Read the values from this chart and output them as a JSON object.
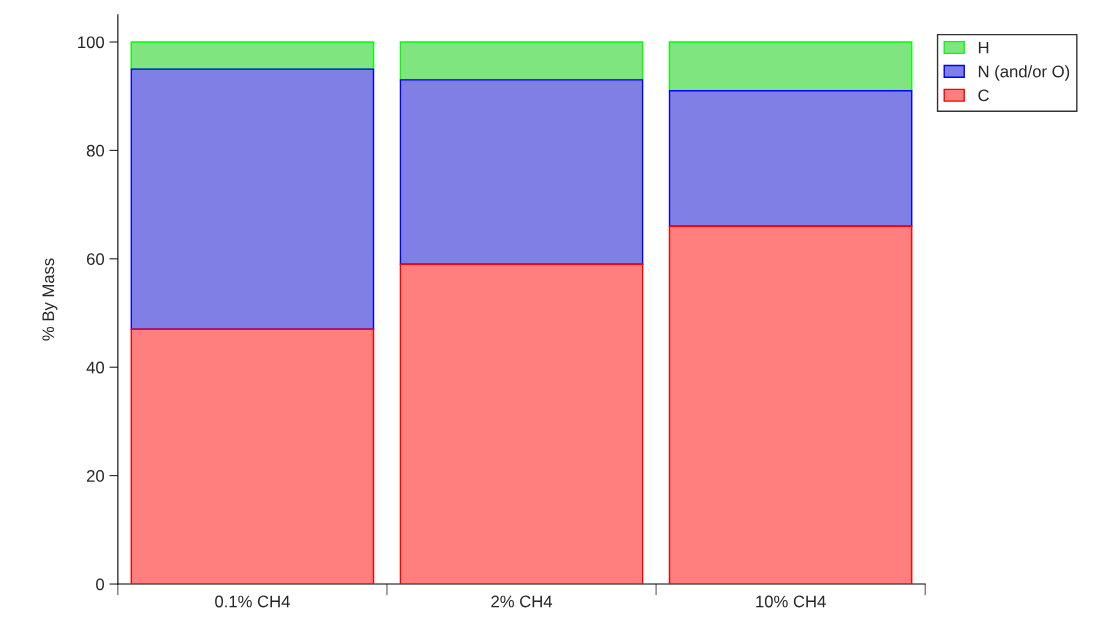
{
  "chart_data": {
    "type": "bar",
    "stacked": true,
    "ylabel": "% By Mass",
    "categories": [
      "0.1% CH4",
      "2% CH4",
      "10% CH4"
    ],
    "series": [
      {
        "name": "C",
        "color": "#ff7f7f",
        "values": [
          47,
          59,
          66
        ]
      },
      {
        "name": "N (and/or O)",
        "color": "#7f7fe6",
        "values": [
          48,
          34,
          25
        ]
      },
      {
        "name": "H",
        "color": "#7fe67f",
        "values": [
          5,
          7,
          9
        ]
      }
    ],
    "ylim": [
      0,
      105
    ],
    "yticks": [
      0,
      20,
      40,
      60,
      80,
      100
    ],
    "grid": false,
    "legend": "top right"
  }
}
